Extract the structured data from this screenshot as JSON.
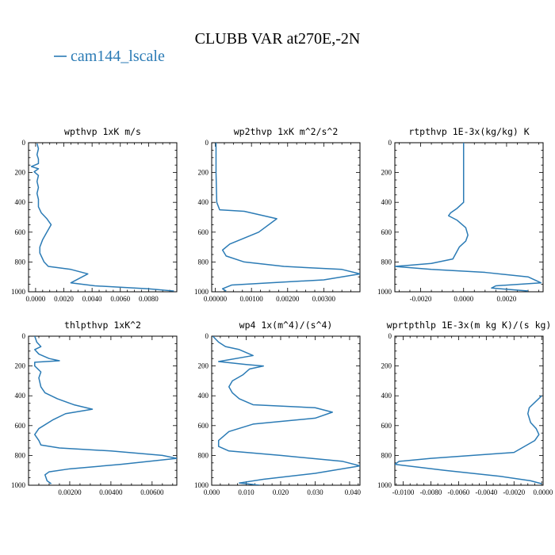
{
  "figure": {
    "title": "CLUBB VAR at270E,-2N",
    "legend": {
      "label": "cam144_lscale",
      "color": "#2b7bb5"
    }
  },
  "chart_data": [
    {
      "type": "line",
      "title": "wpthvp   1xK m/s",
      "xlim": [
        -0.0005,
        0.01
      ],
      "xticks": [
        "0.0000",
        "0.0020",
        "0.0040",
        "0.0060",
        "0.0080"
      ],
      "xtick_values": [
        0,
        0.002,
        0.004,
        0.006,
        0.008
      ],
      "ylim": [
        1000,
        0
      ],
      "yticks": [
        "0",
        "200",
        "400",
        "600",
        "800",
        "1000"
      ],
      "ytick_values": [
        0,
        200,
        400,
        600,
        800,
        1000
      ],
      "series": [
        {
          "color": "#2b7bb5",
          "points": [
            [
              0.0001,
              5
            ],
            [
              0.0002,
              40
            ],
            [
              0.0001,
              80
            ],
            [
              0.0002,
              110
            ],
            [
              0.0002,
              140
            ],
            [
              -0.0003,
              160
            ],
            [
              0.0002,
              175
            ],
            [
              -0.0001,
              195
            ],
            [
              0.0002,
              220
            ],
            [
              0.0001,
              260
            ],
            [
              0.0002,
              300
            ],
            [
              0.0001,
              340
            ],
            [
              0.0002,
              380
            ],
            [
              0.0002,
              430
            ],
            [
              0.0004,
              470
            ],
            [
              0.0008,
              510
            ],
            [
              0.0011,
              550
            ],
            [
              0.0008,
              600
            ],
            [
              0.0005,
              650
            ],
            [
              0.0003,
              700
            ],
            [
              0.0003,
              740
            ],
            [
              0.0006,
              800
            ],
            [
              0.0009,
              830
            ],
            [
              0.0025,
              850
            ],
            [
              0.0037,
              880
            ],
            [
              0.0025,
              940
            ],
            [
              0.0042,
              960
            ],
            [
              0.008,
              980
            ],
            [
              0.0098,
              995
            ]
          ]
        }
      ]
    },
    {
      "type": "line",
      "title": "wp2thvp   1xK m^2/s^2",
      "xlim": [
        -0.0001,
        0.004
      ],
      "xticks": [
        "0.00000",
        "0.00100",
        "0.00200",
        "0.00300"
      ],
      "xtick_values": [
        0,
        0.001,
        0.002,
        0.003
      ],
      "ylim": [
        1000,
        0
      ],
      "yticks": [
        "0",
        "200",
        "400",
        "600",
        "800",
        "1000"
      ],
      "ytick_values": [
        0,
        200,
        400,
        600,
        800,
        1000
      ],
      "series": [
        {
          "color": "#2b7bb5",
          "points": [
            [
              2e-05,
              0
            ],
            [
              2e-05,
              100
            ],
            [
              2e-05,
              200
            ],
            [
              3e-05,
              300
            ],
            [
              4e-05,
              400
            ],
            [
              0.00012,
              450
            ],
            [
              0.0008,
              460
            ],
            [
              0.0017,
              510
            ],
            [
              0.0012,
              600
            ],
            [
              0.0004,
              680
            ],
            [
              0.0002,
              720
            ],
            [
              0.0003,
              760
            ],
            [
              0.0008,
              800
            ],
            [
              0.0019,
              830
            ],
            [
              0.0035,
              850
            ],
            [
              0.004,
              880
            ],
            [
              0.003,
              920
            ],
            [
              0.0015,
              940
            ],
            [
              0.00045,
              955
            ],
            [
              0.0002,
              980
            ],
            [
              0.0003,
              995
            ]
          ]
        }
      ]
    },
    {
      "type": "line",
      "title": "rtpthvp   1E-3x(kg/kg) K",
      "xlim": [
        -0.0032,
        0.0037
      ],
      "xticks": [
        "-0.0020",
        "0.0000",
        "0.0020"
      ],
      "xtick_values": [
        -0.002,
        0,
        0.002
      ],
      "ylim": [
        1000,
        0
      ],
      "yticks": [
        "0",
        "200",
        "400",
        "600",
        "800",
        "1000"
      ],
      "ytick_values": [
        0,
        200,
        400,
        600,
        800,
        1000
      ],
      "series": [
        {
          "color": "#2b7bb5",
          "points": [
            [
              0.0,
              0
            ],
            [
              0.0,
              150
            ],
            [
              0.0,
              300
            ],
            [
              0.0,
              400
            ],
            [
              -0.0003,
              440
            ],
            [
              -0.0006,
              470
            ],
            [
              -0.0007,
              490
            ],
            [
              -0.0003,
              520
            ],
            [
              0.0001,
              570
            ],
            [
              0.0002,
              620
            ],
            [
              0.0001,
              660
            ],
            [
              -0.0002,
              700
            ],
            [
              -0.0005,
              780
            ],
            [
              -0.0015,
              810
            ],
            [
              -0.0032,
              830
            ],
            [
              -0.0015,
              850
            ],
            [
              0.001,
              870
            ],
            [
              0.003,
              900
            ],
            [
              0.0036,
              940
            ],
            [
              0.0015,
              960
            ],
            [
              0.0013,
              975
            ],
            [
              0.003,
              995
            ]
          ]
        }
      ]
    },
    {
      "type": "line",
      "title": "thlpthvp   1xK^2",
      "xlim": [
        0,
        0.0072
      ],
      "xticks": [
        "0.00200",
        "0.00400",
        "0.00600"
      ],
      "xtick_values": [
        0.002,
        0.004,
        0.006
      ],
      "ylim": [
        1000,
        0
      ],
      "yticks": [
        "0",
        "200",
        "400",
        "600",
        "800",
        "1000"
      ],
      "ytick_values": [
        0,
        200,
        400,
        600,
        800,
        1000
      ],
      "series": [
        {
          "color": "#2b7bb5",
          "points": [
            [
              0.0003,
              0
            ],
            [
              0.0004,
              40
            ],
            [
              0.0006,
              70
            ],
            [
              0.0003,
              90
            ],
            [
              0.0005,
              120
            ],
            [
              0.001,
              150
            ],
            [
              0.0015,
              165
            ],
            [
              0.0003,
              175
            ],
            [
              0.0003,
              200
            ],
            [
              0.0006,
              240
            ],
            [
              0.0005,
              280
            ],
            [
              0.0006,
              340
            ],
            [
              0.0008,
              380
            ],
            [
              0.0014,
              420
            ],
            [
              0.0022,
              460
            ],
            [
              0.0031,
              490
            ],
            [
              0.0018,
              520
            ],
            [
              0.0012,
              560
            ],
            [
              0.0005,
              620
            ],
            [
              0.0003,
              660
            ],
            [
              0.0005,
              700
            ],
            [
              0.0006,
              730
            ],
            [
              0.0015,
              750
            ],
            [
              0.004,
              770
            ],
            [
              0.0065,
              800
            ],
            [
              0.0072,
              820
            ],
            [
              0.0045,
              860
            ],
            [
              0.002,
              890
            ],
            [
              0.001,
              910
            ],
            [
              0.0008,
              930
            ],
            [
              0.0009,
              970
            ],
            [
              0.0011,
              990
            ]
          ]
        }
      ]
    },
    {
      "type": "line",
      "title": "wp4   1x(m^4)/(s^4)",
      "xlim": [
        0,
        0.043
      ],
      "xticks": [
        "0.000",
        "0.010",
        "0.020",
        "0.030",
        "0.040"
      ],
      "xtick_values": [
        0,
        0.01,
        0.02,
        0.03,
        0.04
      ],
      "ylim": [
        1000,
        0
      ],
      "yticks": [
        "0",
        "200",
        "400",
        "600",
        "800",
        "1000"
      ],
      "ytick_values": [
        0,
        200,
        400,
        600,
        800,
        1000
      ],
      "series": [
        {
          "color": "#2b7bb5",
          "points": [
            [
              0.0003,
              0
            ],
            [
              0.002,
              40
            ],
            [
              0.004,
              70
            ],
            [
              0.008,
              90
            ],
            [
              0.012,
              130
            ],
            [
              0.002,
              170
            ],
            [
              0.01,
              190
            ],
            [
              0.015,
              200
            ],
            [
              0.011,
              220
            ],
            [
              0.009,
              260
            ],
            [
              0.006,
              300
            ],
            [
              0.005,
              340
            ],
            [
              0.006,
              380
            ],
            [
              0.008,
              420
            ],
            [
              0.012,
              460
            ],
            [
              0.03,
              480
            ],
            [
              0.035,
              510
            ],
            [
              0.03,
              550
            ],
            [
              0.012,
              590
            ],
            [
              0.005,
              640
            ],
            [
              0.002,
              700
            ],
            [
              0.002,
              740
            ],
            [
              0.005,
              770
            ],
            [
              0.02,
              800
            ],
            [
              0.038,
              840
            ],
            [
              0.043,
              870
            ],
            [
              0.03,
              920
            ],
            [
              0.015,
              960
            ],
            [
              0.008,
              985
            ],
            [
              0.014,
              1000
            ]
          ]
        }
      ]
    },
    {
      "type": "line",
      "title": "wprtpthlp   1E-3x(m kg K)/(s kg)",
      "xlim": [
        -0.0106,
        0.0001
      ],
      "xticks": [
        "-0.0100",
        "-0.0080",
        "-0.0060",
        "-0.0040",
        "-0.0020",
        "0.0000"
      ],
      "xtick_values": [
        -0.01,
        -0.008,
        -0.006,
        -0.004,
        -0.002,
        0
      ],
      "ylim": [
        1000,
        0
      ],
      "yticks": [
        "0",
        "200",
        "400",
        "600",
        "800",
        "1000"
      ],
      "ytick_values": [
        0,
        200,
        400,
        600,
        800,
        1000
      ],
      "series": [
        {
          "color": "#2b7bb5",
          "points": [
            [
              0.0,
              400
            ],
            [
              -0.0009,
              480
            ],
            [
              -0.001,
              520
            ],
            [
              -0.0008,
              580
            ],
            [
              -0.0004,
              620
            ],
            [
              -0.0002,
              660
            ],
            [
              -0.0005,
              700
            ],
            [
              -0.002,
              780
            ],
            [
              -0.008,
              820
            ],
            [
              -0.0103,
              840
            ],
            [
              -0.0106,
              860
            ],
            [
              -0.007,
              900
            ],
            [
              -0.003,
              940
            ],
            [
              -0.0008,
              970
            ],
            [
              0.0,
              990
            ]
          ]
        }
      ]
    }
  ]
}
